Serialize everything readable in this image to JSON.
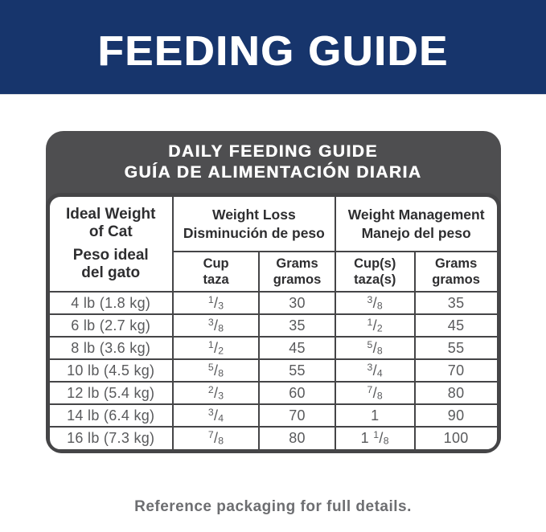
{
  "banner": {
    "title": "FEEDING GUIDE"
  },
  "table": {
    "title_en": "DAILY FEEDING GUIDE",
    "title_es": "GUÍA DE ALIMENTACIÓN DIARIA",
    "weight_header": {
      "en": "Ideal Weight\nof Cat",
      "es": "Peso ideal\ndel gato"
    },
    "groups": [
      {
        "en": "Weight Loss",
        "es": "Disminución de peso"
      },
      {
        "en": "Weight Management",
        "es": "Manejo del peso"
      }
    ],
    "subcolumns": [
      {
        "en": "Cup",
        "es": "taza"
      },
      {
        "en": "Grams",
        "es": "gramos"
      },
      {
        "en": "Cup(s)",
        "es": "taza(s)"
      },
      {
        "en": "Grams",
        "es": "gramos"
      }
    ],
    "rows": [
      {
        "weight": "4 lb (1.8 kg)",
        "loss_cup": "1/3",
        "loss_grams": "30",
        "mgmt_cup": "3/8",
        "mgmt_grams": "35"
      },
      {
        "weight": "6 lb (2.7 kg)",
        "loss_cup": "3/8",
        "loss_grams": "35",
        "mgmt_cup": "1/2",
        "mgmt_grams": "45"
      },
      {
        "weight": "8 lb (3.6 kg)",
        "loss_cup": "1/2",
        "loss_grams": "45",
        "mgmt_cup": "5/8",
        "mgmt_grams": "55"
      },
      {
        "weight": "10 lb (4.5 kg)",
        "loss_cup": "5/8",
        "loss_grams": "55",
        "mgmt_cup": "3/4",
        "mgmt_grams": "70"
      },
      {
        "weight": "12 lb (5.4 kg)",
        "loss_cup": "2/3",
        "loss_grams": "60",
        "mgmt_cup": "7/8",
        "mgmt_grams": "80"
      },
      {
        "weight": "14 lb (6.4 kg)",
        "loss_cup": "3/4",
        "loss_grams": "70",
        "mgmt_cup": "1",
        "mgmt_grams": "90"
      },
      {
        "weight": "16 lb (7.3 kg)",
        "loss_cup": "7/8",
        "loss_grams": "80",
        "mgmt_cup": "1 1/8",
        "mgmt_grams": "100"
      }
    ]
  },
  "footer": {
    "text": "Reference packaging for full details."
  },
  "colors": {
    "banner_blue": "#17356c",
    "header_gray": "#4e4e50",
    "border_dark": "#454547",
    "header_text": "#2e2e30",
    "data_text": "#595a5c",
    "footer_text": "#6d6e71"
  }
}
